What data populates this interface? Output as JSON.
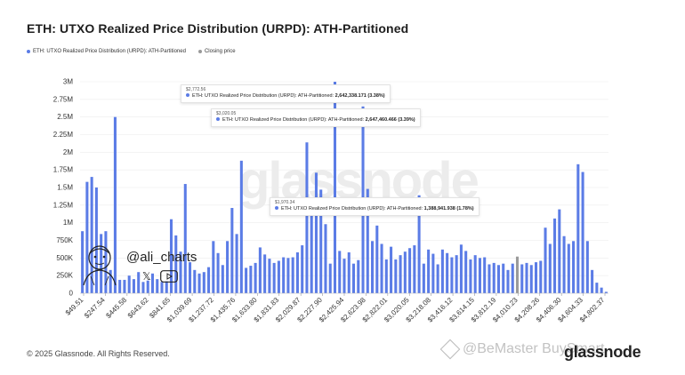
{
  "title": "ETH: UTXO Realized Price Distribution (URPD): ATH-Partitioned",
  "legend": {
    "series_label": "ETH: UTXO Realized Price Distribution (URPD): ATH-Partitioned",
    "closing_label": "Closing price"
  },
  "colors": {
    "bar": "#5b7ce6",
    "closing": "#9a9a9a",
    "grid": "#ececec"
  },
  "tooltips": [
    {
      "x_label": "$2,772.56",
      "series": "ETH: UTXO Realized Price Distribution (URPD): ATH-Partitioned:",
      "value": "2,642,338.171 (3.38%)"
    },
    {
      "x_label": "$3,020.05",
      "series": "ETH: UTXO Realized Price Distribution (URPD): ATH-Partitioned:",
      "value": "2,647,460.466 (3.39%)"
    },
    {
      "x_label": "$1,970.34",
      "series": "ETH: UTXO Realized Price Distribution (URPD): ATH-Partitioned:",
      "value": "1,388,941.938 (1.78%)"
    }
  ],
  "watermark": {
    "handle": "@ali_charts",
    "x_icon": "x-logo-icon",
    "video_icon": "youtube-icon"
  },
  "footer": "© 2025 Glassnode. All Rights Reserved.",
  "brand": "glassnode",
  "binance_watermark": "@BeMaster BuySmart",
  "chart_data": {
    "type": "bar",
    "ylim": [
      0,
      3000000
    ],
    "yticks": [
      0,
      250000,
      500000,
      750000,
      1000000,
      1250000,
      1500000,
      1750000,
      2000000,
      2250000,
      2500000,
      2750000,
      3000000
    ],
    "ytick_labels": [
      "0",
      "250K",
      "500K",
      "750K",
      "1M",
      "1.25M",
      "1.5M",
      "1.75M",
      "2M",
      "2.25M",
      "2.5M",
      "2.75M",
      "3M"
    ],
    "xtick_labels": [
      "$49.51",
      "$247.54",
      "$445.58",
      "$643.62",
      "$841.65",
      "$1,039.69",
      "$1,237.72",
      "$1,435.76",
      "$1,633.80",
      "$1,831.83",
      "$2,029.87",
      "$2,227.90",
      "$2,425.94",
      "$2,623.98",
      "$2,822.01",
      "$3,020.05",
      "$3,218.08",
      "$3,416.12",
      "$3,614.15",
      "$3,812.19",
      "$4,010.23",
      "$4,208.26",
      "$4,406.30",
      "$4,604.33",
      "$4,802.37"
    ],
    "closing_price_index": 93,
    "values": [
      880000,
      1580000,
      1650000,
      1500000,
      840000,
      880000,
      330000,
      2500000,
      190000,
      190000,
      250000,
      200000,
      300000,
      160000,
      180000,
      280000,
      200000,
      160000,
      170000,
      1050000,
      820000,
      590000,
      1550000,
      440000,
      330000,
      280000,
      300000,
      370000,
      740000,
      570000,
      400000,
      740000,
      1210000,
      840000,
      1880000,
      360000,
      390000,
      430000,
      650000,
      550000,
      490000,
      430000,
      460000,
      510000,
      500000,
      510000,
      580000,
      680000,
      2140000,
      1270000,
      1710000,
      1470000,
      980000,
      420000,
      3000000,
      600000,
      490000,
      580000,
      420000,
      470000,
      2650000,
      1480000,
      740000,
      960000,
      700000,
      480000,
      660000,
      480000,
      540000,
      590000,
      640000,
      680000,
      1390000,
      420000,
      620000,
      560000,
      410000,
      620000,
      570000,
      510000,
      540000,
      690000,
      600000,
      480000,
      540000,
      500000,
      510000,
      410000,
      430000,
      400000,
      420000,
      330000,
      420000,
      520000,
      410000,
      430000,
      400000,
      440000,
      460000,
      930000,
      700000,
      1060000,
      1190000,
      810000,
      700000,
      740000,
      1830000,
      1720000,
      740000,
      330000,
      150000,
      80000,
      20000
    ]
  }
}
